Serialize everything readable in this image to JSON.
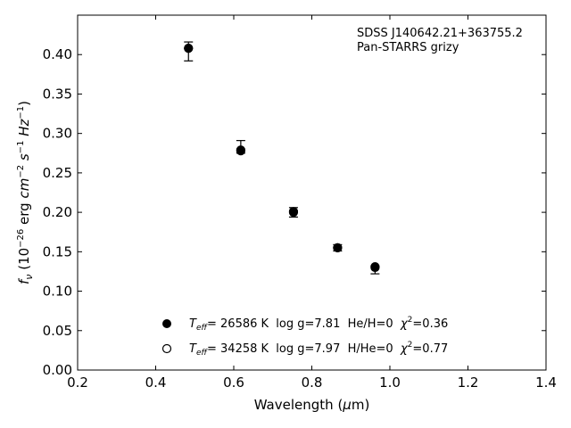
{
  "chart_data": {
    "type": "scatter",
    "xlabel": "Wavelength (μm)",
    "ylabel": "f_ν (10^-26 erg cm^-2 s^-1 Hz^-1)",
    "xlim": [
      0.2,
      1.4
    ],
    "ylim": [
      0.0,
      0.45
    ],
    "xticks": [
      "0.2",
      "0.4",
      "0.6",
      "0.8",
      "1.0",
      "1.2",
      "1.4"
    ],
    "yticks": [
      "0.00",
      "0.05",
      "0.10",
      "0.15",
      "0.20",
      "0.25",
      "0.30",
      "0.35",
      "0.40"
    ],
    "grid": false,
    "annotation": [
      "SDSS J140642.21+363755.2",
      "Pan-STARRS grizy"
    ],
    "observed": {
      "x": [
        0.484,
        0.618,
        0.753,
        0.866,
        0.962
      ],
      "y": [
        0.404,
        0.283,
        0.2,
        0.155,
        0.127
      ],
      "yerr": [
        0.012,
        0.008,
        0.006,
        0.004,
        0.005
      ]
    },
    "series": [
      {
        "name": "T_eff= 26586 K  log g=7.81  He/H=0  χ²=0.36",
        "marker": "filled",
        "x": [
          0.484,
          0.618,
          0.753,
          0.866,
          0.962
        ],
        "y": [
          0.408,
          0.278,
          0.2,
          0.155,
          0.13
        ]
      },
      {
        "name": "T_eff= 34258 K  log g=7.97  H/He=0  χ²=0.77",
        "marker": "open",
        "x": [
          0.484,
          0.618,
          0.753,
          0.866,
          0.962
        ],
        "y": [
          0.408,
          0.279,
          0.201,
          0.155,
          0.131
        ]
      }
    ],
    "legend": {
      "position": "lower-center",
      "entries": [
        {
          "teff_label": "T",
          "teff_sub": "eff",
          "text": "= 26586 K  log g=7.81  He/H=0  ",
          "chi": "χ",
          "chi_sup": "2",
          "chi_val": "=0.36"
        },
        {
          "teff_label": "T",
          "teff_sub": "eff",
          "text": "= 34258 K  log g=7.97  H/He=0  ",
          "chi": "χ",
          "chi_sup": "2",
          "chi_val": "=0.77"
        }
      ]
    }
  }
}
